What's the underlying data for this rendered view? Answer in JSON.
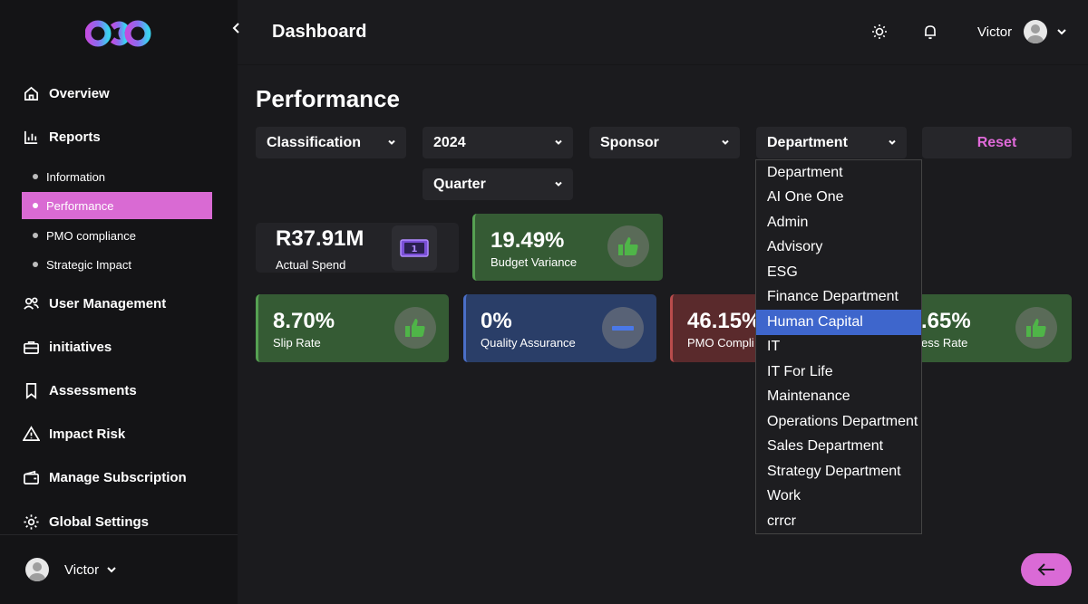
{
  "header": {
    "title": "Dashboard",
    "user_name": "Victor"
  },
  "sidebar": {
    "items": [
      {
        "label": "Overview",
        "icon": "home-icon"
      },
      {
        "label": "Reports",
        "icon": "bar-chart-icon"
      },
      {
        "label": "User Management",
        "icon": "users-icon"
      },
      {
        "label": "initiatives",
        "icon": "briefcase-icon"
      },
      {
        "label": "Assessments",
        "icon": "bookmark-icon"
      },
      {
        "label": "Impact Risk",
        "icon": "warning-icon"
      },
      {
        "label": "Manage Subscription",
        "icon": "wallet-icon"
      },
      {
        "label": "Global Settings",
        "icon": "gear-icon"
      }
    ],
    "report_subitems": [
      {
        "label": "Information",
        "active": false
      },
      {
        "label": "Performance",
        "active": true
      },
      {
        "label": "PMO compliance",
        "active": false
      },
      {
        "label": "Strategic Impact",
        "active": false
      }
    ],
    "user_name": "Victor"
  },
  "main": {
    "section_title": "Performance",
    "filters": {
      "classification": "Classification",
      "year": "2024",
      "sponsor": "Sponsor",
      "department": "Department",
      "quarter": "Quarter",
      "reset_label": "Reset"
    },
    "cards": {
      "actual_spend": {
        "value": "R37.91M",
        "label": "Actual Spend"
      },
      "budget_variance": {
        "value": "19.49%",
        "label": "Budget Variance"
      },
      "slip_rate": {
        "value": "8.70%",
        "label": "Slip Rate"
      },
      "quality_assurance": {
        "value": "0%",
        "label": "Quality Assurance"
      },
      "pmo_compliance": {
        "value": "46.15%",
        "label": "PMO Compli"
      },
      "success_rate": {
        "value": ".65%",
        "label": "ess Rate"
      }
    },
    "department_options": [
      "Department",
      "AI One One",
      "Admin",
      "Advisory",
      "ESG",
      "Finance Department",
      "Human Capital",
      "IT",
      "IT For Life",
      "Maintenance",
      "Operations Department",
      "Sales Department",
      "Strategy Department",
      "Work",
      "crrcr"
    ],
    "department_selected": "Human Capital"
  },
  "colors": {
    "accent": "#d96ad3",
    "green": "#355b34",
    "blue": "#2a3e68",
    "red": "#5a2a2c",
    "selected": "#3e66cc"
  }
}
